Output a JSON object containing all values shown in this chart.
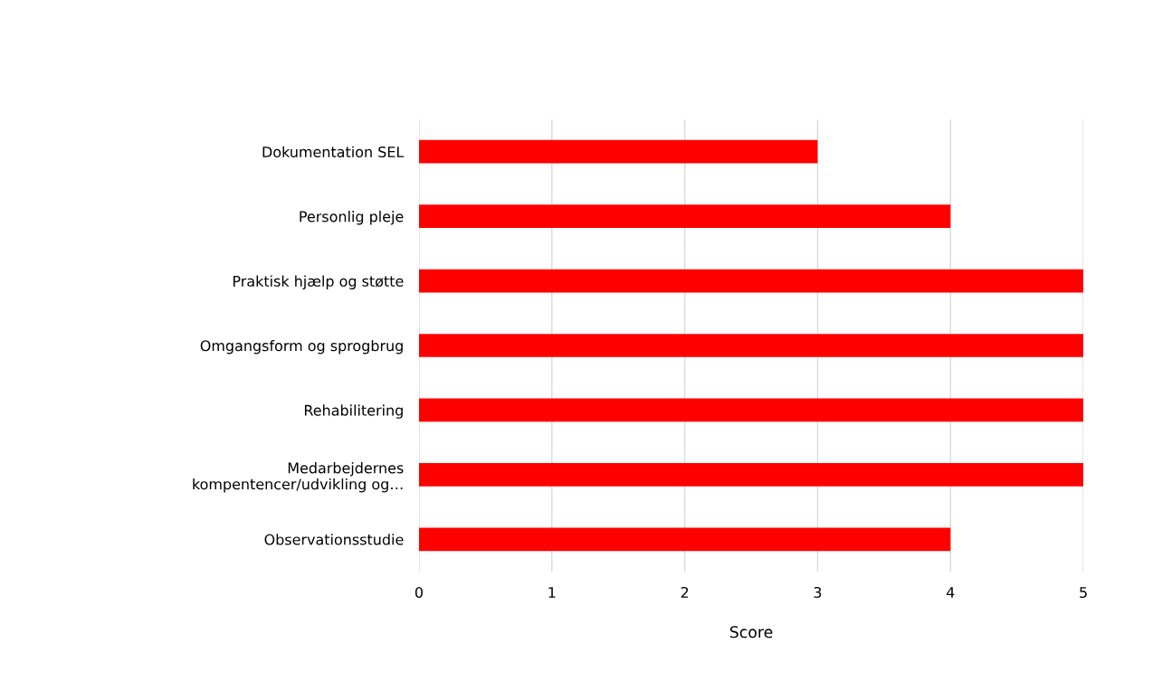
{
  "chart_data": {
    "type": "bar",
    "orientation": "horizontal",
    "xlabel": "Score",
    "categories": [
      "Dokumentation SEL",
      "Personlig pleje",
      "Praktisk hjælp og støtte",
      "Omgangsform og sprogbrug",
      "Rehabilitering",
      "Medarbejdernes\nkompentencer/udvikling og…",
      "Observationsstudie"
    ],
    "values": [
      3,
      4,
      5,
      5,
      5,
      5,
      4
    ],
    "color": "#ff0000",
    "xlim": [
      0,
      5
    ],
    "xticks": [
      0,
      1,
      2,
      3,
      4,
      5
    ],
    "grid": "x"
  }
}
